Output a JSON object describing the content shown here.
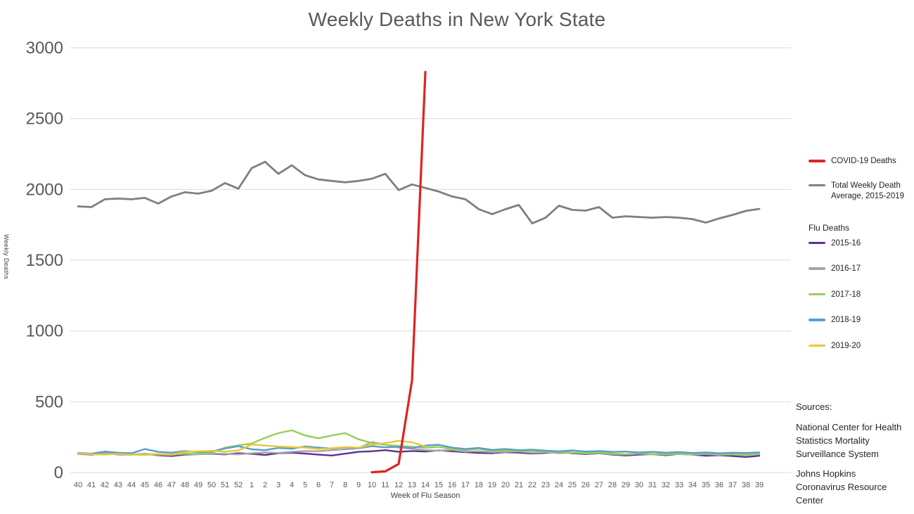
{
  "chart_data": {
    "type": "line",
    "title": "Weekly Deaths in New York State",
    "xlabel": "Week of Flu Season",
    "ylabel": "Weekly Deaths",
    "ylim": [
      0,
      3000
    ],
    "yticks": [
      0,
      500,
      1000,
      1500,
      2000,
      2500,
      3000
    ],
    "grid": true,
    "grid_color": "#d9d9d9",
    "axis_color": "#595959",
    "legend_position": "right",
    "categories": [
      "40",
      "41",
      "42",
      "43",
      "44",
      "45",
      "46",
      "47",
      "48",
      "49",
      "50",
      "51",
      "52",
      "1",
      "2",
      "3",
      "4",
      "5",
      "6",
      "7",
      "8",
      "9",
      "10",
      "11",
      "12",
      "13",
      "14",
      "15",
      "16",
      "17",
      "18",
      "19",
      "20",
      "21",
      "22",
      "23",
      "24",
      "25",
      "26",
      "27",
      "28",
      "29",
      "30",
      "31",
      "32",
      "33",
      "34",
      "35",
      "36",
      "37",
      "38",
      "39"
    ],
    "series": [
      {
        "name": "COVID-19 Deaths",
        "color": "#dd2423",
        "width": 3.2,
        "values": [
          null,
          null,
          null,
          null,
          null,
          null,
          null,
          null,
          null,
          null,
          null,
          null,
          null,
          null,
          null,
          null,
          null,
          null,
          null,
          null,
          null,
          null,
          2,
          8,
          60,
          650,
          2830,
          null,
          null,
          null,
          null,
          null,
          null,
          null,
          null,
          null,
          null,
          null,
          null,
          null,
          null,
          null,
          null,
          null,
          null,
          null,
          null,
          null,
          null,
          null,
          null,
          null
        ]
      },
      {
        "name": "Total Weekly Death Average, 2015-2019",
        "color": "#7f7f7f",
        "width": 2.8,
        "values": [
          1880,
          1875,
          1930,
          1935,
          1930,
          1940,
          1900,
          1950,
          1980,
          1970,
          1990,
          2045,
          2005,
          2150,
          2195,
          2110,
          2170,
          2100,
          2070,
          2060,
          2050,
          2060,
          2075,
          2110,
          1995,
          2035,
          2010,
          1985,
          1950,
          1930,
          1860,
          1825,
          1860,
          1890,
          1760,
          1800,
          1885,
          1855,
          1850,
          1875,
          1800,
          1810,
          1805,
          1800,
          1805,
          1800,
          1790,
          1765,
          1795,
          1820,
          1848,
          1862
        ]
      },
      {
        "name": "2015-16",
        "group": "Flu Deaths",
        "color": "#5f3191",
        "width": 2.4,
        "values": [
          132,
          126,
          133,
          128,
          126,
          132,
          122,
          116,
          126,
          130,
          132,
          128,
          136,
          132,
          124,
          136,
          140,
          134,
          126,
          120,
          133,
          146,
          150,
          158,
          146,
          152,
          148,
          156,
          150,
          144,
          138,
          136,
          144,
          140,
          134,
          138,
          146,
          136,
          130,
          136,
          126,
          120,
          126,
          130,
          122,
          132,
          126,
          118,
          122,
          116,
          110,
          118
        ]
      },
      {
        "name": "2016-17",
        "group": "Flu Deaths",
        "color": "#a6a6a6",
        "width": 2.4,
        "values": [
          136,
          130,
          138,
          132,
          128,
          132,
          126,
          124,
          132,
          128,
          134,
          132,
          128,
          136,
          142,
          138,
          146,
          152,
          150,
          158,
          164,
          172,
          215,
          196,
          176,
          168,
          158,
          154,
          160,
          148,
          150,
          144,
          146,
          150,
          138,
          144,
          136,
          140,
          134,
          138,
          130,
          126,
          134,
          128,
          136,
          130,
          126,
          130,
          124,
          128,
          126,
          130
        ]
      },
      {
        "name": "2017-18",
        "group": "Flu Deaths",
        "color": "#97cd5a",
        "width": 2.4,
        "values": [
          134,
          130,
          127,
          134,
          129,
          127,
          131,
          127,
          134,
          131,
          140,
          176,
          192,
          205,
          245,
          278,
          298,
          262,
          242,
          262,
          278,
          235,
          208,
          195,
          188,
          182,
          175,
          182,
          165,
          160,
          168,
          152,
          155,
          148,
          152,
          145,
          148,
          141,
          137,
          144,
          134,
          129,
          137,
          131,
          127,
          133,
          129,
          136,
          131,
          127,
          124,
          130
        ]
      },
      {
        "name": "2018-19",
        "group": "Flu Deaths",
        "color": "#57a0c8",
        "width": 2.4,
        "values": [
          138,
          133,
          148,
          140,
          136,
          166,
          146,
          140,
          152,
          144,
          148,
          170,
          186,
          164,
          158,
          174,
          168,
          184,
          176,
          170,
          178,
          172,
          186,
          178,
          182,
          174,
          190,
          196,
          176,
          166,
          174,
          160,
          166,
          158,
          162,
          154,
          150,
          156,
          148,
          152,
          146,
          148,
          142,
          146,
          140,
          144,
          138,
          142,
          136,
          140,
          138,
          142
        ]
      },
      {
        "name": "2019-20",
        "group": "Flu Deaths",
        "color": "#e9c63b",
        "width": 2.4,
        "values": [
          134,
          129,
          127,
          131,
          127,
          124,
          129,
          127,
          146,
          150,
          153,
          148,
          156,
          198,
          190,
          184,
          180,
          176,
          166,
          172,
          180,
          176,
          196,
          208,
          224,
          214,
          184,
          null,
          null,
          null,
          null,
          null,
          null,
          null,
          null,
          null,
          null,
          null,
          null,
          null,
          null,
          null,
          null,
          null,
          null,
          null,
          null,
          null,
          null,
          null,
          null,
          null
        ]
      }
    ]
  },
  "legend": {
    "covid_label": "COVID-19 Deaths",
    "total_label": "Total Weekly Death\nAverage,  2015-2019",
    "flu_header": "Flu Deaths",
    "flu_items": [
      "2015-16",
      "2016-17",
      "2017-18",
      "2018-19",
      "2019-20"
    ]
  },
  "sources": {
    "heading": "Sources:",
    "items": [
      "National Center for Health\nStatistics Mortality\nSurveillance System",
      "Johns Hopkins\nCoronavirus Resource\nCenter"
    ]
  }
}
